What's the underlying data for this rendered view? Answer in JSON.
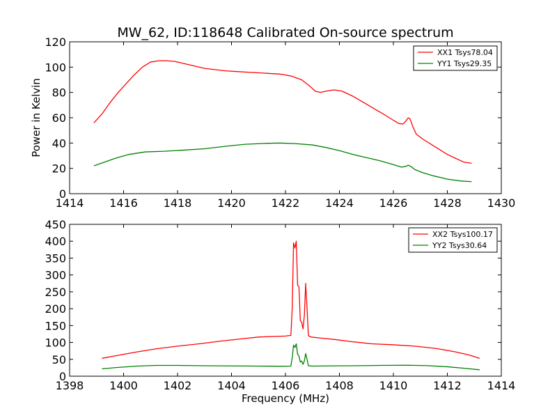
{
  "chart_data": [
    {
      "type": "line",
      "title": "MW_62, ID:118648 Calibrated On-source spectrum",
      "xlabel": "",
      "ylabel": "Power in Kelvin",
      "xlim": [
        1414,
        1430
      ],
      "ylim": [
        0,
        120
      ],
      "xticks": [
        "1414",
        "1416",
        "1418",
        "1420",
        "1422",
        "1424",
        "1426",
        "1428",
        "1430"
      ],
      "yticks": [
        "0",
        "20",
        "40",
        "60",
        "80",
        "100",
        "120"
      ],
      "legend_position": "top-right",
      "series": [
        {
          "name": "XX1 Tsys78.04",
          "color": "#ff0000",
          "points": [
            [
              1414.9,
              56
            ],
            [
              1415.2,
              63
            ],
            [
              1415.5,
              72
            ],
            [
              1415.8,
              80
            ],
            [
              1416.1,
              87
            ],
            [
              1416.4,
              94
            ],
            [
              1416.7,
              100
            ],
            [
              1417.0,
              104
            ],
            [
              1417.3,
              105
            ],
            [
              1417.6,
              105
            ],
            [
              1417.9,
              104.5
            ],
            [
              1418.2,
              103
            ],
            [
              1418.6,
              101
            ],
            [
              1419.0,
              99
            ],
            [
              1419.4,
              98
            ],
            [
              1419.8,
              97
            ],
            [
              1420.2,
              96.5
            ],
            [
              1420.6,
              96
            ],
            [
              1421.0,
              95.5
            ],
            [
              1421.4,
              95
            ],
            [
              1421.8,
              94.5
            ],
            [
              1422.2,
              93
            ],
            [
              1422.6,
              90
            ],
            [
              1422.9,
              85
            ],
            [
              1423.1,
              81
            ],
            [
              1423.3,
              80
            ],
            [
              1423.5,
              81
            ],
            [
              1423.8,
              82
            ],
            [
              1424.1,
              81
            ],
            [
              1424.5,
              77
            ],
            [
              1424.9,
              72
            ],
            [
              1425.3,
              67
            ],
            [
              1425.7,
              62
            ],
            [
              1426.0,
              58
            ],
            [
              1426.2,
              55.5
            ],
            [
              1426.35,
              55
            ],
            [
              1426.45,
              57
            ],
            [
              1426.55,
              60
            ],
            [
              1426.62,
              59
            ],
            [
              1426.72,
              53
            ],
            [
              1426.85,
              47
            ],
            [
              1427.1,
              43
            ],
            [
              1427.4,
              39
            ],
            [
              1427.7,
              35
            ],
            [
              1428.0,
              31
            ],
            [
              1428.3,
              28
            ],
            [
              1428.6,
              25
            ],
            [
              1428.9,
              24
            ]
          ]
        },
        {
          "name": "YY1 Tsys29.35",
          "color": "#008000",
          "points": [
            [
              1414.9,
              22
            ],
            [
              1415.3,
              25
            ],
            [
              1415.7,
              28
            ],
            [
              1416.2,
              31
            ],
            [
              1416.8,
              33
            ],
            [
              1417.5,
              33.5
            ],
            [
              1418.3,
              34.5
            ],
            [
              1419.0,
              35.5
            ],
            [
              1419.8,
              37.5
            ],
            [
              1420.5,
              39
            ],
            [
              1421.2,
              39.7
            ],
            [
              1421.8,
              40
            ],
            [
              1422.4,
              39.5
            ],
            [
              1423.0,
              38.5
            ],
            [
              1423.5,
              36.5
            ],
            [
              1424.0,
              34
            ],
            [
              1424.5,
              31
            ],
            [
              1425.0,
              28.5
            ],
            [
              1425.5,
              26
            ],
            [
              1426.0,
              23
            ],
            [
              1426.3,
              21
            ],
            [
              1426.45,
              21.5
            ],
            [
              1426.55,
              22.5
            ],
            [
              1426.65,
              21.5
            ],
            [
              1426.8,
              19
            ],
            [
              1427.1,
              16.5
            ],
            [
              1427.5,
              14
            ],
            [
              1428.0,
              11.5
            ],
            [
              1428.5,
              10
            ],
            [
              1428.9,
              9.5
            ]
          ]
        }
      ]
    },
    {
      "type": "line",
      "title": "",
      "xlabel": "Frequency (MHz)",
      "ylabel": "",
      "xlim": [
        1398,
        1414
      ],
      "ylim": [
        0,
        450
      ],
      "xticks": [
        "1398",
        "1400",
        "1402",
        "1404",
        "1406",
        "1408",
        "1410",
        "1412",
        "1414"
      ],
      "yticks": [
        "0",
        "50",
        "100",
        "150",
        "200",
        "250",
        "300",
        "350",
        "400",
        "450"
      ],
      "legend_position": "top-right",
      "series": [
        {
          "name": "XX2 Tsys100.17",
          "color": "#ff0000",
          "points": [
            [
              1399.2,
              53
            ],
            [
              1399.8,
              62
            ],
            [
              1400.5,
              72
            ],
            [
              1401.2,
              81
            ],
            [
              1402.0,
              89
            ],
            [
              1402.8,
              96
            ],
            [
              1403.6,
              104
            ],
            [
              1404.4,
              111
            ],
            [
              1405.0,
              116
            ],
            [
              1405.6,
              118
            ],
            [
              1406.0,
              119
            ],
            [
              1406.2,
              121
            ],
            [
              1406.25,
              200
            ],
            [
              1406.3,
              395
            ],
            [
              1406.35,
              380
            ],
            [
              1406.4,
              400
            ],
            [
              1406.45,
              270
            ],
            [
              1406.5,
              265
            ],
            [
              1406.55,
              165
            ],
            [
              1406.6,
              160
            ],
            [
              1406.65,
              140
            ],
            [
              1406.7,
              180
            ],
            [
              1406.75,
              275
            ],
            [
              1406.8,
              200
            ],
            [
              1406.85,
              120
            ],
            [
              1406.95,
              116
            ],
            [
              1407.3,
              113
            ],
            [
              1407.8,
              109
            ],
            [
              1408.5,
              102
            ],
            [
              1409.2,
              96
            ],
            [
              1410.0,
              93
            ],
            [
              1410.8,
              89
            ],
            [
              1411.6,
              82
            ],
            [
              1412.3,
              72
            ],
            [
              1412.8,
              63
            ],
            [
              1413.2,
              53
            ]
          ]
        },
        {
          "name": "YY2 Tsys30.64",
          "color": "#008000",
          "points": [
            [
              1399.2,
              22
            ],
            [
              1399.8,
              26
            ],
            [
              1400.5,
              30
            ],
            [
              1401.2,
              32
            ],
            [
              1402.0,
              32
            ],
            [
              1403.0,
              31
            ],
            [
              1404.0,
              30.5
            ],
            [
              1405.0,
              30
            ],
            [
              1405.8,
              29.5
            ],
            [
              1406.2,
              30
            ],
            [
              1406.25,
              55
            ],
            [
              1406.3,
              92
            ],
            [
              1406.35,
              85
            ],
            [
              1406.4,
              96
            ],
            [
              1406.45,
              65
            ],
            [
              1406.5,
              60
            ],
            [
              1406.55,
              42
            ],
            [
              1406.6,
              45
            ],
            [
              1406.65,
              35
            ],
            [
              1406.7,
              45
            ],
            [
              1406.75,
              67
            ],
            [
              1406.8,
              50
            ],
            [
              1406.85,
              31
            ],
            [
              1407.0,
              30
            ],
            [
              1407.5,
              30.5
            ],
            [
              1408.5,
              31
            ],
            [
              1409.5,
              32
            ],
            [
              1410.5,
              32.5
            ],
            [
              1411.2,
              31.5
            ],
            [
              1412.0,
              28
            ],
            [
              1412.7,
              23
            ],
            [
              1413.2,
              19
            ]
          ]
        }
      ]
    }
  ]
}
